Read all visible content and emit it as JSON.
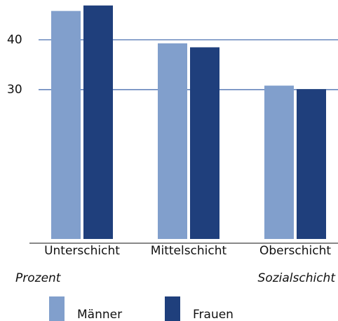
{
  "chart_data": {
    "type": "bar",
    "categories": [
      "Unterschicht",
      "Mittelschicht",
      "Oberschicht"
    ],
    "series": [
      {
        "name": "Männer",
        "color": "#819fcc",
        "values": [
          45.8,
          39.3,
          30.8
        ]
      },
      {
        "name": "Frauen",
        "color": "#1f3f7c",
        "values": [
          46.9,
          38.5,
          30.1
        ]
      }
    ],
    "ylim": [
      -0.85,
      48
    ],
    "yticks": [
      30,
      40
    ],
    "y_label": "Prozent",
    "x_label": "Sozialschicht",
    "grid": true
  }
}
